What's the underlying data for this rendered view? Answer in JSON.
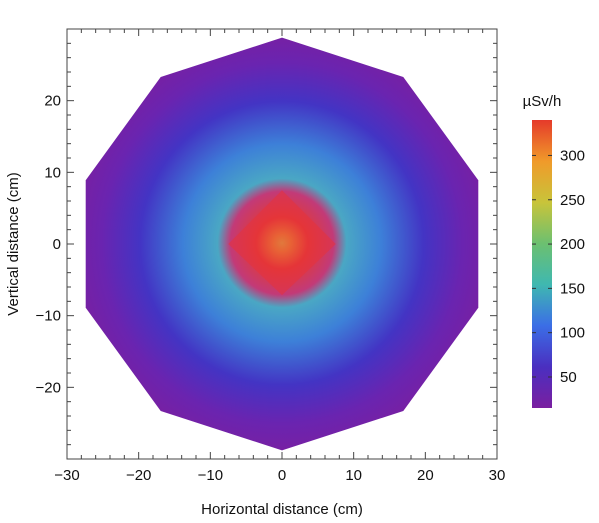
{
  "chart_data": {
    "type": "heatmap",
    "title": "",
    "xlabel": "Horizontal distance (cm)",
    "ylabel": "Vertical distance (cm)",
    "xlim": [
      -30,
      30
    ],
    "ylim": [
      -30,
      30
    ],
    "x_ticks": [
      -30,
      -20,
      -10,
      0,
      10,
      20,
      30
    ],
    "y_ticks": [
      -20,
      -10,
      0,
      10,
      20
    ],
    "x_tick_labels": [
      "−30",
      "−20",
      "−10",
      "0",
      "10",
      "20",
      "30"
    ],
    "y_tick_labels": [
      "−20",
      "−10",
      "0",
      "10",
      "20"
    ],
    "grid": false,
    "shape": "decagon",
    "boundary_radius": 28.8,
    "center_value": 340,
    "edge_value": 18,
    "colorbar": {
      "label": "µSv/h",
      "range": [
        15,
        340
      ],
      "ticks": [
        50,
        100,
        150,
        200,
        250,
        300
      ],
      "tick_labels": [
        "50",
        "100",
        "150",
        "200",
        "250",
        "300"
      ],
      "colors": [
        "#7a1fa0",
        "#4a2fc0",
        "#3b6ee6",
        "#3fb8b0",
        "#6cc070",
        "#c8c43a",
        "#f09a2a",
        "#e53a2a"
      ]
    }
  }
}
